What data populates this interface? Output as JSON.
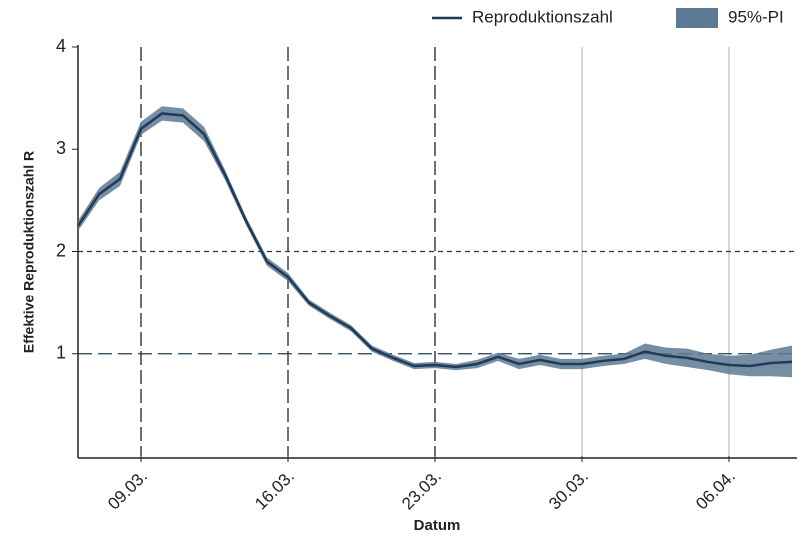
{
  "chart_data": {
    "type": "line",
    "y_label": "Effektive Reproduktionszahl R",
    "x_label": "Datum",
    "categories": [
      null,
      null,
      null,
      "09.03.",
      null,
      null,
      null,
      null,
      null,
      null,
      "16.03.",
      null,
      null,
      null,
      null,
      null,
      null,
      "23.03.",
      null,
      null,
      null,
      null,
      null,
      null,
      "30.03.",
      null,
      null,
      null,
      null,
      null,
      null,
      "06.04.",
      null,
      null,
      null
    ],
    "series": [
      {
        "name": "Reproduktionszahl",
        "color": "#1f3b57",
        "values": [
          2.25,
          2.56,
          2.71,
          3.2,
          3.35,
          3.33,
          3.15,
          2.75,
          2.3,
          1.9,
          1.75,
          1.5,
          1.37,
          1.25,
          1.05,
          0.96,
          0.88,
          0.89,
          0.87,
          0.9,
          0.97,
          0.9,
          0.94,
          0.9,
          0.9,
          0.93,
          0.95,
          1.02,
          0.98,
          0.96,
          0.92,
          0.89,
          0.88,
          0.91,
          0.92
        ]
      }
    ],
    "band": {
      "name": "95%-PI",
      "color": "#5d7a94",
      "upper": [
        2.3,
        2.62,
        2.78,
        3.27,
        3.42,
        3.4,
        3.22,
        2.8,
        2.34,
        1.94,
        1.79,
        1.53,
        1.4,
        1.28,
        1.08,
        0.99,
        0.91,
        0.92,
        0.9,
        0.94,
        1.01,
        0.95,
        0.99,
        0.95,
        0.95,
        0.98,
        1.0,
        1.1,
        1.06,
        1.05,
        1.0,
        0.98,
        0.99,
        1.04,
        1.08
      ],
      "lower": [
        2.2,
        2.5,
        2.64,
        3.14,
        3.28,
        3.26,
        3.08,
        2.7,
        2.26,
        1.86,
        1.71,
        1.47,
        1.34,
        1.22,
        1.02,
        0.93,
        0.85,
        0.86,
        0.84,
        0.86,
        0.93,
        0.85,
        0.89,
        0.85,
        0.85,
        0.88,
        0.9,
        0.95,
        0.9,
        0.87,
        0.84,
        0.8,
        0.78,
        0.78,
        0.77
      ]
    },
    "ylim": [
      0,
      4
    ],
    "yticks": [
      1,
      2,
      3,
      4
    ],
    "hlines": [
      1,
      2
    ],
    "vline_dashed": [
      true,
      true,
      true,
      false,
      false
    ],
    "legend": "top-right"
  }
}
